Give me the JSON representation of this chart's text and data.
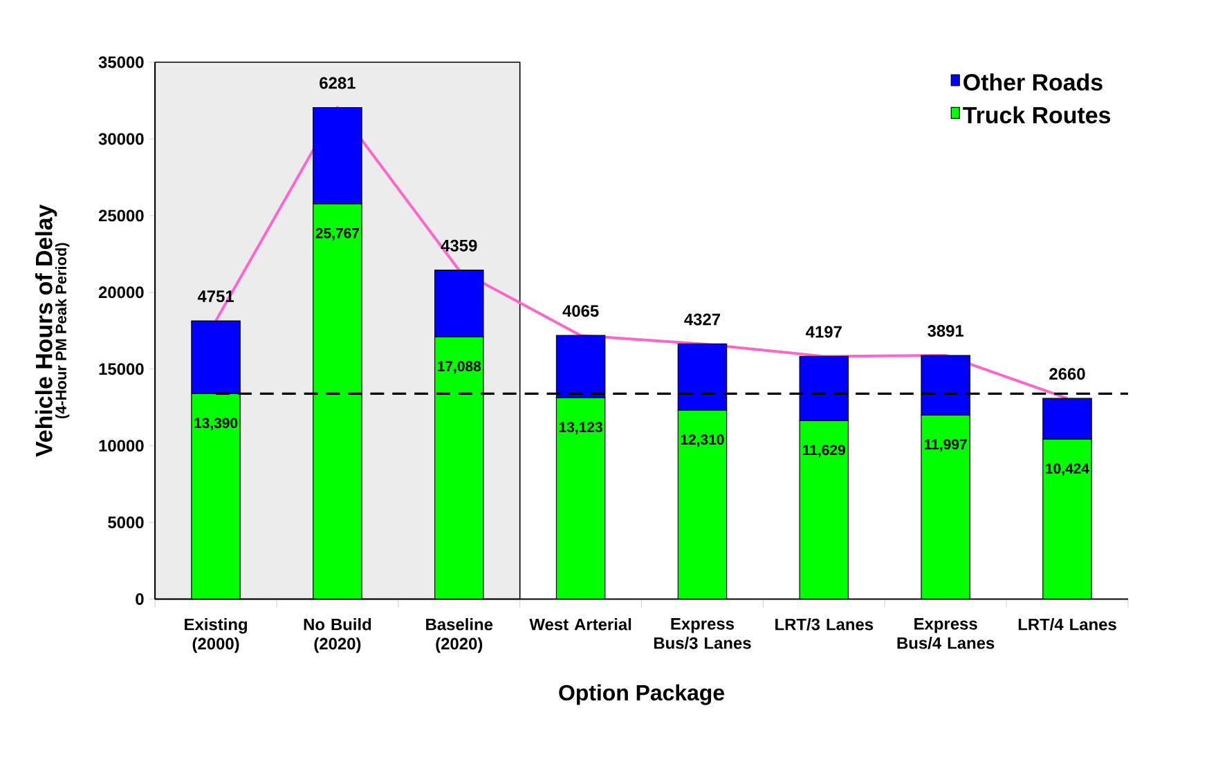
{
  "chart_data": {
    "type": "bar",
    "stacked": true,
    "xlabel": "Option Package",
    "ylabel": "Vehicle Hours of Delay",
    "annotations": [
      "(4-Hour PM Peak Period)"
    ],
    "categories": [
      "Existing (2000)",
      "No Build (2020)",
      "Baseline (2020)",
      "West Arterial",
      "Express Bus/3 Lanes",
      "LRT/3 Lanes",
      "Express Bus/4 Lanes",
      "LRT/4 Lanes"
    ],
    "series": [
      {
        "name": "Truck Routes",
        "color": "#00ff00",
        "values": [
          13390,
          25767,
          17088,
          13123,
          12310,
          11629,
          11997,
          10424
        ],
        "value_labels": [
          "13,390",
          "25,767",
          "17,088",
          "13,123",
          "12,310",
          "11,629",
          "11,997",
          "10,424"
        ]
      },
      {
        "name": "Other Roads",
        "color": "#0000ff",
        "values": [
          4751,
          6281,
          4359,
          4065,
          4327,
          4197,
          3891,
          2660
        ],
        "value_labels": [
          "4751",
          "6281",
          "4359",
          "4065",
          "4327",
          "4197",
          "3891",
          "2660"
        ]
      },
      {
        "type": "line",
        "color": "#ff66cc",
        "values": [
          18141,
          32048,
          21447,
          17188,
          16637,
          15826,
          15888,
          13084
        ]
      }
    ],
    "ylim": [
      0,
      35000
    ],
    "yticks": [
      0,
      5000,
      10000,
      15000,
      20000,
      25000,
      30000,
      35000
    ],
    "ref_lines": [
      {
        "axis": "y",
        "value": 13390,
        "color": "#000000",
        "line_style": "dashed"
      }
    ],
    "bands": [
      {
        "axis": "x",
        "from": "Existing (2000)",
        "to": "Baseline (2020)",
        "color": "#ececec"
      }
    ],
    "legend": "top right",
    "grid": false
  }
}
